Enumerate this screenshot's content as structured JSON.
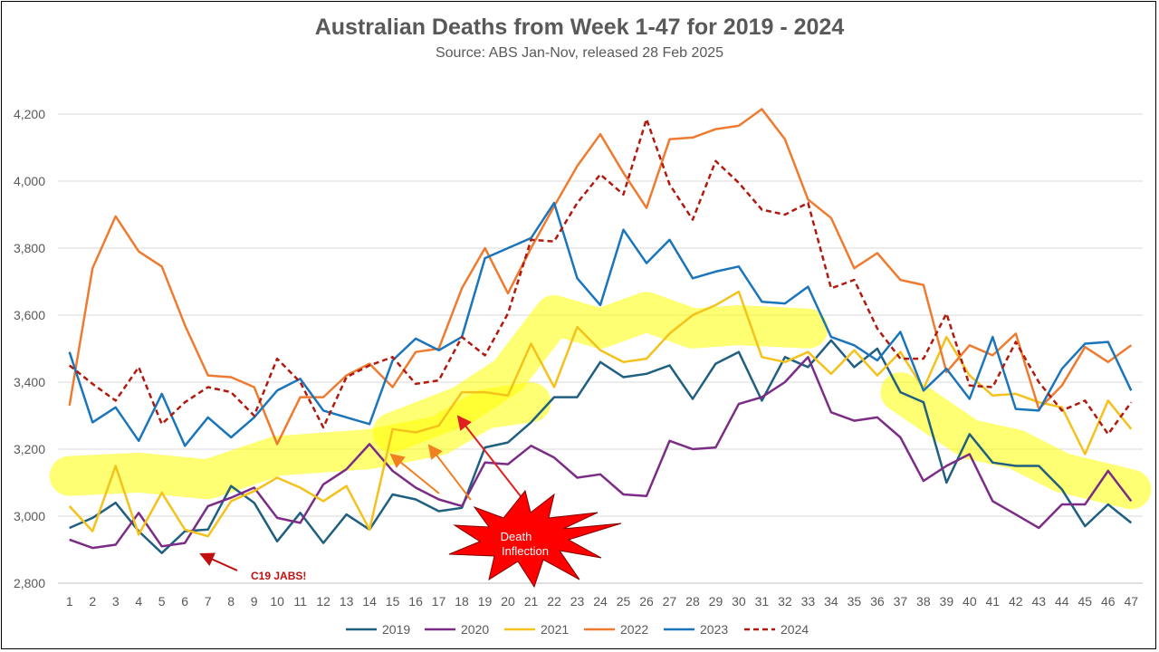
{
  "chart_data": {
    "type": "line",
    "title": "Australian Deaths from Week 1-47 for 2019 - 2024",
    "subtitle": "Source: ABS Jan-Nov, released 28 Feb 2025",
    "xlabel": "",
    "ylabel": "",
    "ylim": [
      2800,
      4200
    ],
    "yticks": [
      "2,800",
      "3,000",
      "3,200",
      "3,400",
      "3,600",
      "3,800",
      "4,000",
      "4,200"
    ],
    "grid": true,
    "legend": "bottom",
    "x": [
      1,
      2,
      3,
      4,
      5,
      6,
      7,
      8,
      9,
      10,
      11,
      12,
      13,
      14,
      15,
      16,
      17,
      18,
      19,
      20,
      21,
      22,
      23,
      24,
      25,
      26,
      27,
      28,
      29,
      30,
      31,
      32,
      33,
      34,
      35,
      36,
      37,
      38,
      39,
      40,
      41,
      42,
      43,
      44,
      45,
      46,
      47
    ],
    "series": [
      {
        "name": "2019",
        "color": "#1f5f80",
        "dashed": false,
        "values": [
          2965,
          2995,
          3040,
          2955,
          2890,
          2955,
          2960,
          3090,
          3040,
          2925,
          3010,
          2920,
          3005,
          2960,
          3065,
          3050,
          3015,
          3025,
          3205,
          3220,
          3280,
          3355,
          3355,
          3460,
          3415,
          3425,
          3450,
          3350,
          3455,
          3490,
          3345,
          3475,
          3445,
          3525,
          3445,
          3500,
          3370,
          3340,
          3100,
          3245,
          3160,
          3150,
          3150,
          3080,
          2970,
          3035,
          2980
        ]
      },
      {
        "name": "2020",
        "color": "#7b2d86",
        "dashed": false,
        "values": [
          2930,
          2905,
          2915,
          3010,
          2910,
          2920,
          3030,
          3055,
          3085,
          2995,
          2980,
          3095,
          3140,
          3215,
          3135,
          3085,
          3050,
          3030,
          3160,
          3155,
          3210,
          3175,
          3115,
          3125,
          3065,
          3060,
          3225,
          3200,
          3205,
          3335,
          3355,
          3400,
          3475,
          3310,
          3285,
          3295,
          3235,
          3105,
          3150,
          3185,
          3045,
          3005,
          2965,
          3035,
          3035,
          3135,
          3045
        ]
      },
      {
        "name": "2021",
        "color": "#f5c21b",
        "dashed": false,
        "values": [
          3030,
          2955,
          3150,
          2945,
          3070,
          2960,
          2940,
          3045,
          3075,
          3115,
          3085,
          3045,
          3090,
          2960,
          3260,
          3250,
          3270,
          3370,
          3370,
          3360,
          3515,
          3385,
          3565,
          3495,
          3460,
          3470,
          3545,
          3600,
          3630,
          3670,
          3475,
          3460,
          3490,
          3425,
          3495,
          3420,
          3490,
          3380,
          3535,
          3420,
          3360,
          3365,
          3340,
          3325,
          3185,
          3345,
          3260
        ]
      },
      {
        "name": "2022",
        "color": "#ee7b30",
        "dashed": false,
        "values": [
          3330,
          3740,
          3895,
          3790,
          3745,
          3570,
          3420,
          3415,
          3385,
          3215,
          3355,
          3355,
          3420,
          3455,
          3385,
          3490,
          3500,
          3680,
          3800,
          3665,
          3800,
          3925,
          4045,
          4140,
          4025,
          3920,
          4125,
          4130,
          4155,
          4165,
          4215,
          4125,
          3945,
          3890,
          3740,
          3785,
          3705,
          3690,
          3430,
          3510,
          3480,
          3545,
          3320,
          3390,
          3505,
          3460,
          3510
        ]
      },
      {
        "name": "2023",
        "color": "#1a75bb",
        "dashed": false,
        "values": [
          3490,
          3280,
          3325,
          3225,
          3365,
          3210,
          3295,
          3235,
          3295,
          3375,
          3410,
          3315,
          3295,
          3275,
          3465,
          3530,
          3495,
          3535,
          3770,
          3800,
          3830,
          3935,
          3710,
          3630,
          3855,
          3755,
          3825,
          3710,
          3730,
          3745,
          3640,
          3635,
          3685,
          3535,
          3510,
          3465,
          3550,
          3375,
          3440,
          3350,
          3535,
          3320,
          3315,
          3440,
          3515,
          3520,
          3375
        ]
      },
      {
        "name": "2024",
        "color": "#b01a0f",
        "dashed": true,
        "values": [
          3450,
          3395,
          3345,
          3445,
          3275,
          3340,
          3385,
          3370,
          3300,
          3470,
          3400,
          3265,
          3415,
          3450,
          3475,
          3395,
          3405,
          3535,
          3480,
          3605,
          3825,
          3820,
          3935,
          4020,
          3960,
          4185,
          3990,
          3885,
          4060,
          3995,
          3915,
          3900,
          3935,
          3680,
          3705,
          3560,
          3470,
          3470,
          3605,
          3390,
          3385,
          3520,
          3400,
          3315,
          3345,
          3245,
          3340
        ]
      }
    ]
  },
  "annotations": {
    "burst_line1": "Death",
    "burst_line2": "Inflection",
    "jabs_label": "C19 JABS!"
  }
}
